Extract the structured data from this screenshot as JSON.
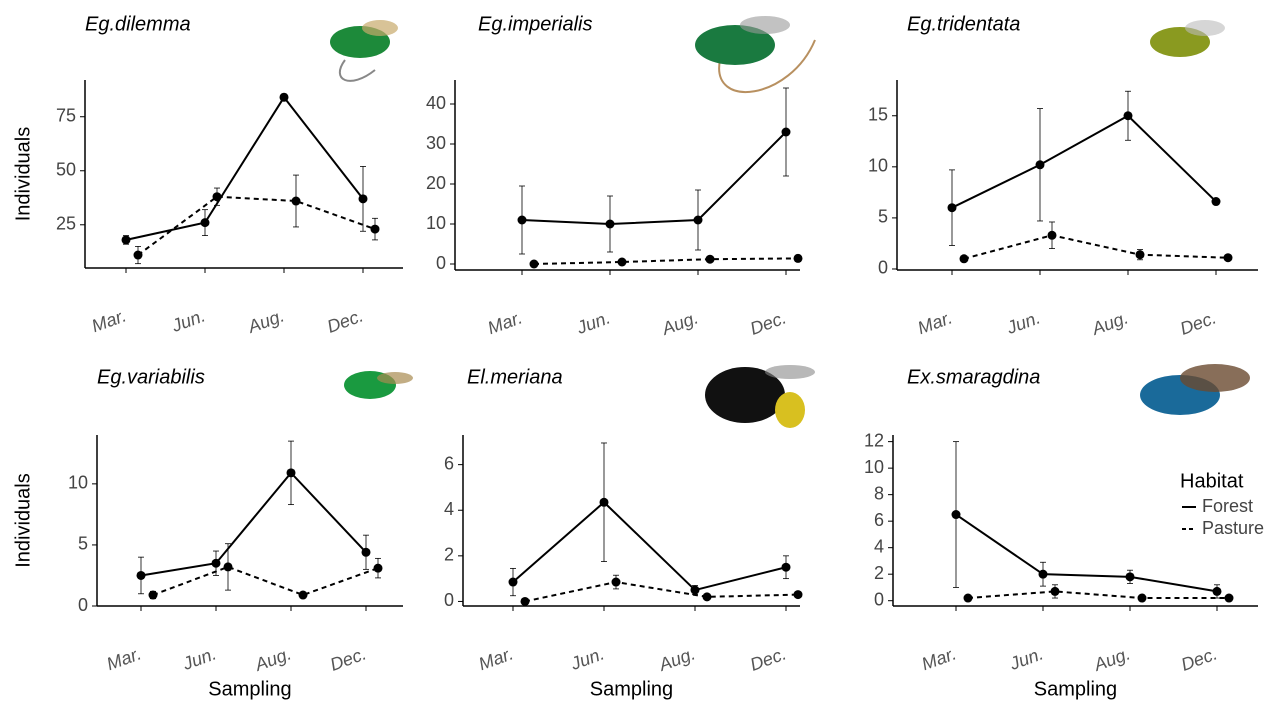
{
  "chart_data": [
    {
      "type": "line",
      "title": "Eg.dilemma",
      "y_label": "Individuals",
      "categories": [
        "Mar.",
        "Jun.",
        "Aug.",
        "Dec."
      ],
      "series": [
        {
          "name": "Forest",
          "color": "#000000",
          "style": "solid",
          "values": [
            18,
            26,
            84,
            37
          ],
          "errors": [
            2,
            6,
            1.5,
            15
          ]
        },
        {
          "name": "Pasture",
          "color": "#000000",
          "style": "dashed",
          "values": [
            11,
            38,
            36,
            23
          ],
          "errors": [
            4,
            4,
            12,
            5
          ]
        }
      ],
      "ylim": [
        5,
        92
      ],
      "yticks": [
        25,
        50,
        75
      ]
    },
    {
      "type": "line",
      "title": "Eg.imperialis",
      "categories": [
        "Mar.",
        "Jun.",
        "Aug.",
        "Dec."
      ],
      "series": [
        {
          "name": "Forest",
          "color": "#000000",
          "style": "solid",
          "values": [
            11,
            10,
            11,
            33
          ],
          "errors": [
            8.5,
            7,
            7.5,
            11
          ]
        },
        {
          "name": "Pasture",
          "color": "#000000",
          "style": "dashed",
          "values": [
            0,
            0.5,
            1.2,
            1.4
          ],
          "errors": [
            0.3,
            0.3,
            0.3,
            0.3
          ]
        }
      ],
      "ylim": [
        -1.5,
        46
      ],
      "yticks": [
        0,
        10,
        20,
        30,
        40
      ]
    },
    {
      "type": "line",
      "title": "Eg.tridentata",
      "categories": [
        "Mar.",
        "Jun.",
        "Aug.",
        "Dec."
      ],
      "series": [
        {
          "name": "Forest",
          "color": "#000000",
          "style": "solid",
          "values": [
            6,
            10.2,
            15,
            6.6
          ],
          "errors": [
            3.7,
            5.5,
            2.4,
            0.2
          ]
        },
        {
          "name": "Pasture",
          "color": "#000000",
          "style": "dashed",
          "values": [
            1,
            3.3,
            1.4,
            1.1
          ],
          "errors": [
            0.1,
            1.3,
            0.5,
            0.1
          ]
        }
      ],
      "ylim": [
        -0.1,
        18.5
      ],
      "yticks": [
        0,
        5,
        10,
        15
      ]
    },
    {
      "type": "line",
      "title": "Eg.variabilis",
      "y_label": "Individuals",
      "x_label": "Sampling",
      "categories": [
        "Mar.",
        "Jun.",
        "Aug.",
        "Dec."
      ],
      "series": [
        {
          "name": "Forest",
          "color": "#000000",
          "style": "solid",
          "values": [
            2.5,
            3.5,
            10.9,
            4.4
          ],
          "errors": [
            1.5,
            1,
            2.6,
            1.4
          ]
        },
        {
          "name": "Pasture",
          "color": "#000000",
          "style": "dashed",
          "values": [
            0.9,
            3.2,
            0.9,
            3.1
          ],
          "errors": [
            0.3,
            1.9,
            0.2,
            0.8
          ]
        }
      ],
      "ylim": [
        0,
        14
      ],
      "yticks": [
        0,
        5,
        10
      ]
    },
    {
      "type": "line",
      "title": "El.meriana",
      "x_label": "Sampling",
      "categories": [
        "Mar.",
        "Jun.",
        "Aug.",
        "Dec."
      ],
      "series": [
        {
          "name": "Forest",
          "color": "#000000",
          "style": "solid",
          "values": [
            0.85,
            4.35,
            0.5,
            1.5
          ],
          "errors": [
            0.6,
            2.6,
            0.2,
            0.5
          ]
        },
        {
          "name": "Pasture",
          "color": "#000000",
          "style": "dashed",
          "values": [
            0,
            0.85,
            0.2,
            0.3
          ],
          "errors": [
            0.05,
            0.3,
            0.05,
            0.05
          ]
        }
      ],
      "ylim": [
        -0.2,
        7.3
      ],
      "yticks": [
        0,
        2,
        4,
        6
      ]
    },
    {
      "type": "line",
      "title": "Ex.smaragdina",
      "x_label": "Sampling",
      "legend_title": "Habitat",
      "legend": "right",
      "categories": [
        "Mar.",
        "Jun.",
        "Aug.",
        "Dec."
      ],
      "series": [
        {
          "name": "Forest",
          "color": "#000000",
          "style": "solid",
          "values": [
            6.5,
            2,
            1.8,
            0.7
          ],
          "errors": [
            5.5,
            0.9,
            0.5,
            0.5
          ]
        },
        {
          "name": "Pasture",
          "color": "#000000",
          "style": "dashed",
          "values": [
            0.2,
            0.7,
            0.2,
            0.2
          ],
          "errors": [
            0.1,
            0.5,
            0.1,
            0.1
          ]
        }
      ],
      "ylim": [
        -0.4,
        12.5
      ],
      "yticks": [
        0,
        2,
        4,
        6,
        8,
        10,
        12
      ]
    }
  ]
}
